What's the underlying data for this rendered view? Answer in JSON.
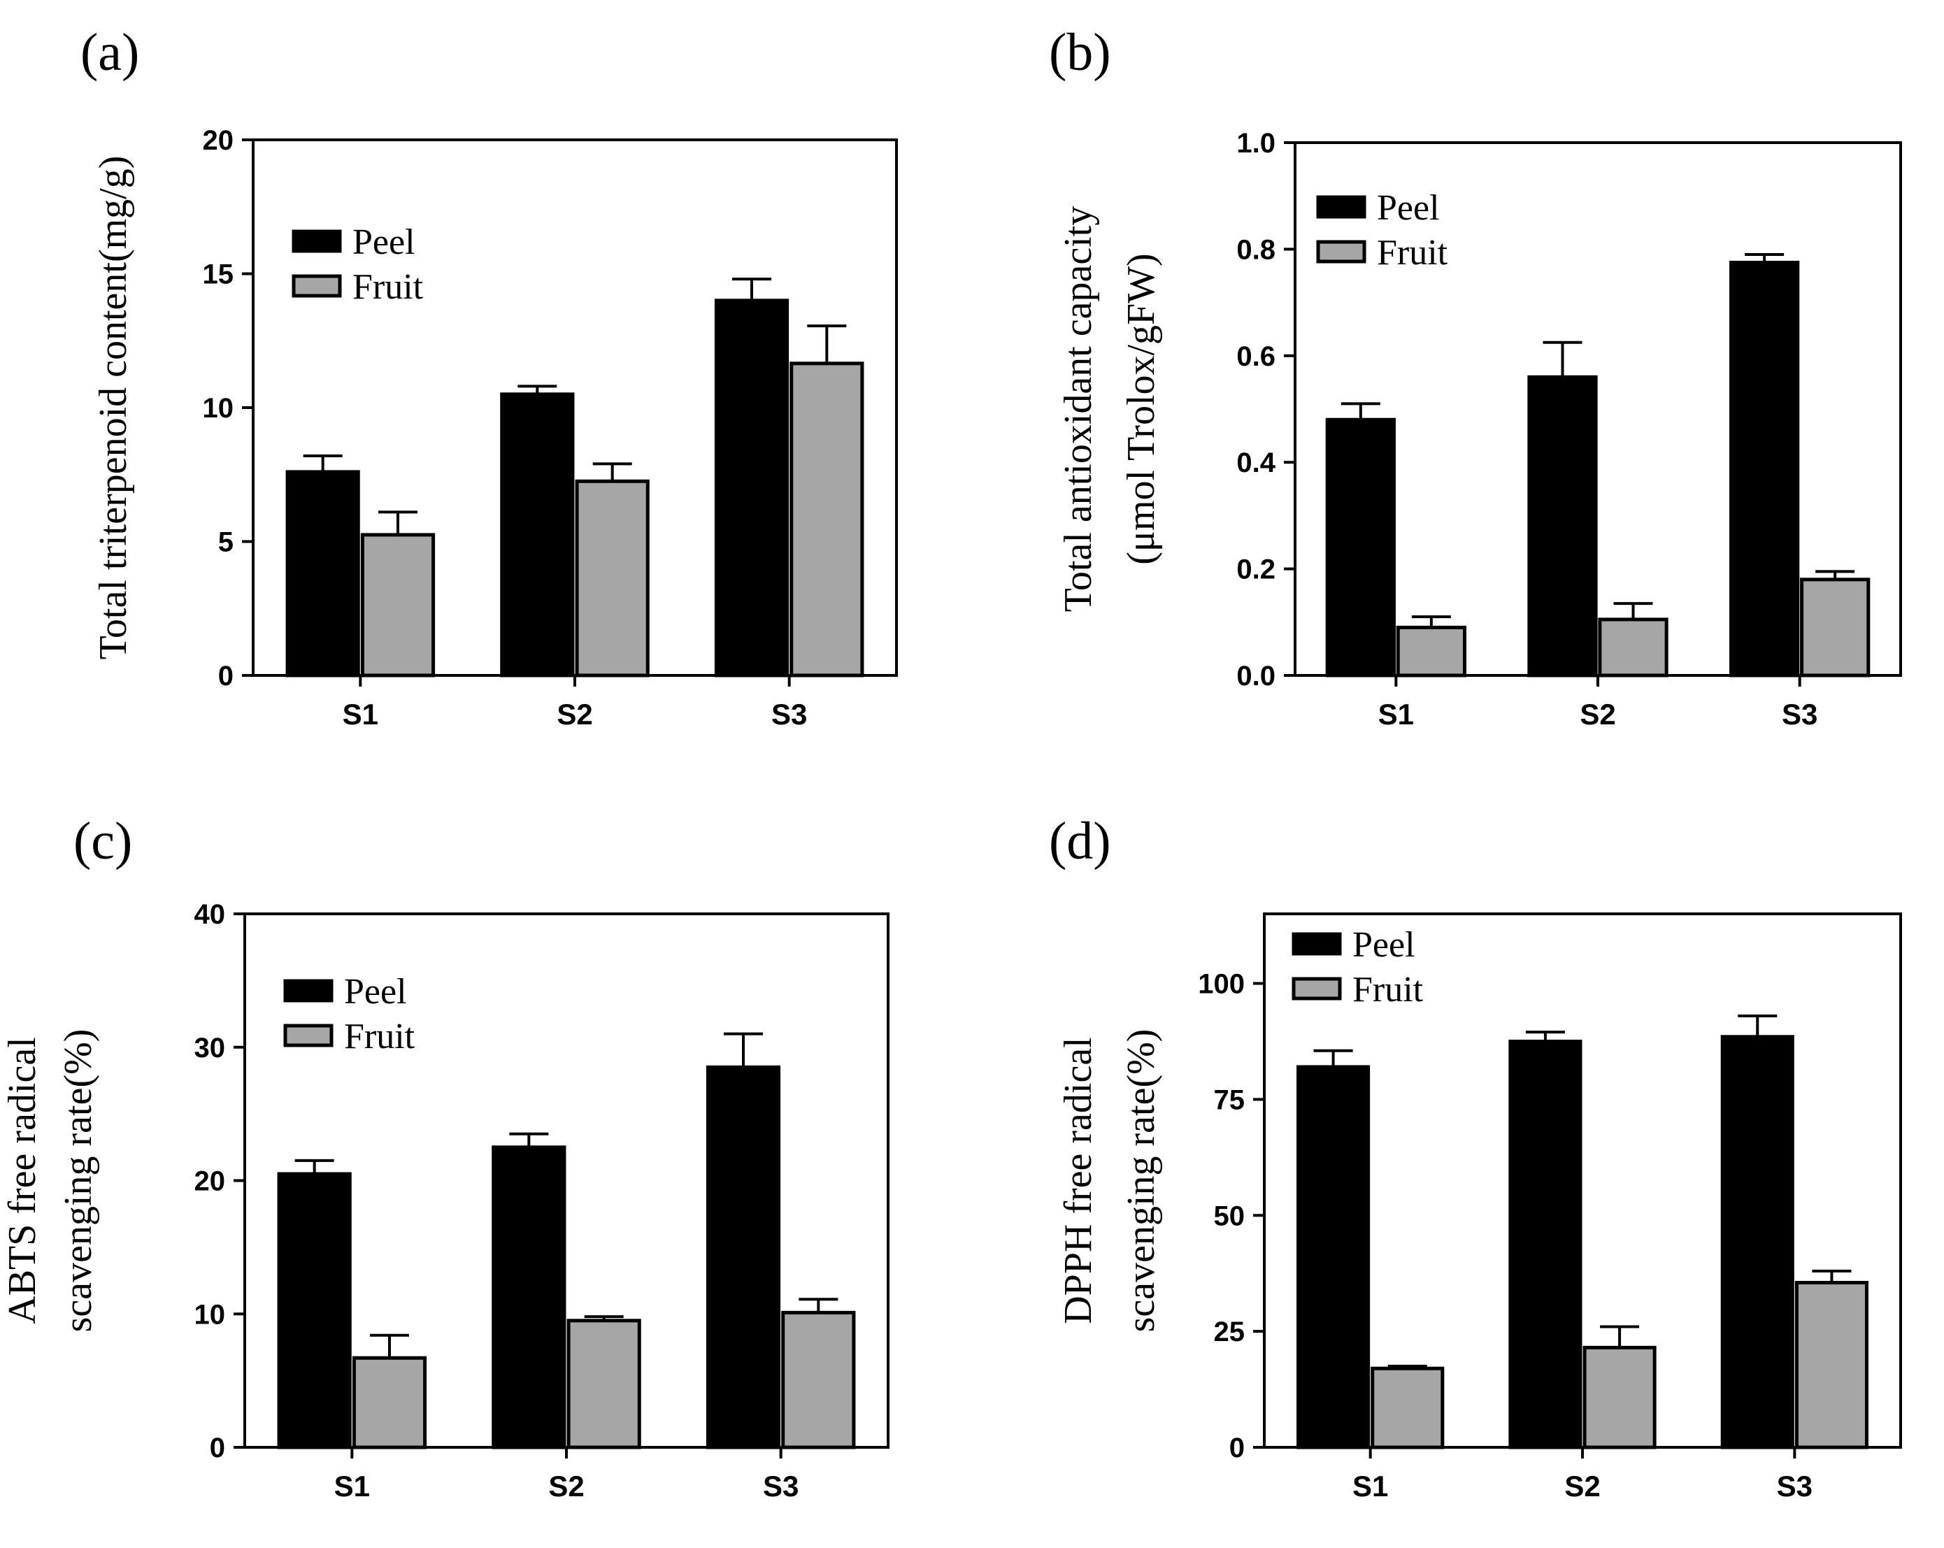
{
  "colors": {
    "peel": "#000000",
    "fruit": "#a6a6a6",
    "axis": "#000000"
  },
  "chart_data": [
    {
      "type": "bar",
      "panel": "(a)",
      "categories": [
        "S1",
        "S2",
        "S3"
      ],
      "ylabel_lines": [
        "Total triterpenoid content(mg/g)"
      ],
      "ylim": [
        0,
        20
      ],
      "yticks": [
        0,
        5,
        10,
        15,
        20
      ],
      "tick_labels": [
        "0",
        "5",
        "10",
        "15",
        "20"
      ],
      "legend": "upper-left",
      "series": [
        {
          "name": "Peel",
          "values": [
            7.6,
            10.5,
            14.0
          ],
          "errors": [
            0.6,
            0.3,
            0.8
          ]
        },
        {
          "name": "Fruit",
          "values": [
            5.25,
            7.25,
            11.65
          ],
          "errors": [
            0.85,
            0.65,
            1.4
          ]
        }
      ]
    },
    {
      "type": "bar",
      "panel": "(b)",
      "categories": [
        "S1",
        "S2",
        "S3"
      ],
      "ylabel_lines": [
        "Total antioxidant capacity",
        "(μmol Trolox/gFW)"
      ],
      "ylim": [
        0,
        1.0
      ],
      "yticks": [
        0,
        0.2,
        0.4,
        0.6,
        0.8,
        1.0
      ],
      "tick_labels": [
        "0.0",
        "0.2",
        "0.4",
        "0.6",
        "0.8",
        "1.0"
      ],
      "legend": "upper-left",
      "series": [
        {
          "name": "Peel",
          "values": [
            0.48,
            0.56,
            0.775
          ],
          "errors": [
            0.03,
            0.065,
            0.015
          ]
        },
        {
          "name": "Fruit",
          "values": [
            0.09,
            0.105,
            0.18
          ],
          "errors": [
            0.02,
            0.03,
            0.015
          ]
        }
      ]
    },
    {
      "type": "bar",
      "panel": "(c)",
      "categories": [
        "S1",
        "S2",
        "S3"
      ],
      "ylabel_lines": [
        "ABTS free radical",
        "scavenging rate(%)"
      ],
      "ylim": [
        0,
        40
      ],
      "yticks": [
        0,
        10,
        20,
        30,
        40
      ],
      "tick_labels": [
        "0",
        "10",
        "20",
        "30",
        "40"
      ],
      "legend": "upper-left",
      "series": [
        {
          "name": "Peel",
          "values": [
            20.5,
            22.5,
            28.5
          ],
          "errors": [
            1.0,
            1.0,
            2.5
          ]
        },
        {
          "name": "Fruit",
          "values": [
            6.7,
            9.5,
            10.1
          ],
          "errors": [
            1.7,
            0.3,
            1.0
          ]
        }
      ]
    },
    {
      "type": "bar",
      "panel": "(d)",
      "categories": [
        "S1",
        "S2",
        "S3"
      ],
      "ylabel_lines": [
        "DPPH free radical",
        "scavenging rate(%)"
      ],
      "ylim": [
        0,
        115
      ],
      "yticks": [
        0,
        25,
        50,
        75,
        100
      ],
      "tick_labels": [
        "0",
        "25",
        "50",
        "75",
        "100"
      ],
      "legend": "upper-left",
      "series": [
        {
          "name": "Peel",
          "values": [
            82.0,
            87.5,
            88.5
          ],
          "errors": [
            3.5,
            2.0,
            4.5
          ]
        },
        {
          "name": "Fruit",
          "values": [
            17.0,
            21.5,
            35.5
          ],
          "errors": [
            0.5,
            4.5,
            2.5
          ]
        }
      ]
    }
  ]
}
